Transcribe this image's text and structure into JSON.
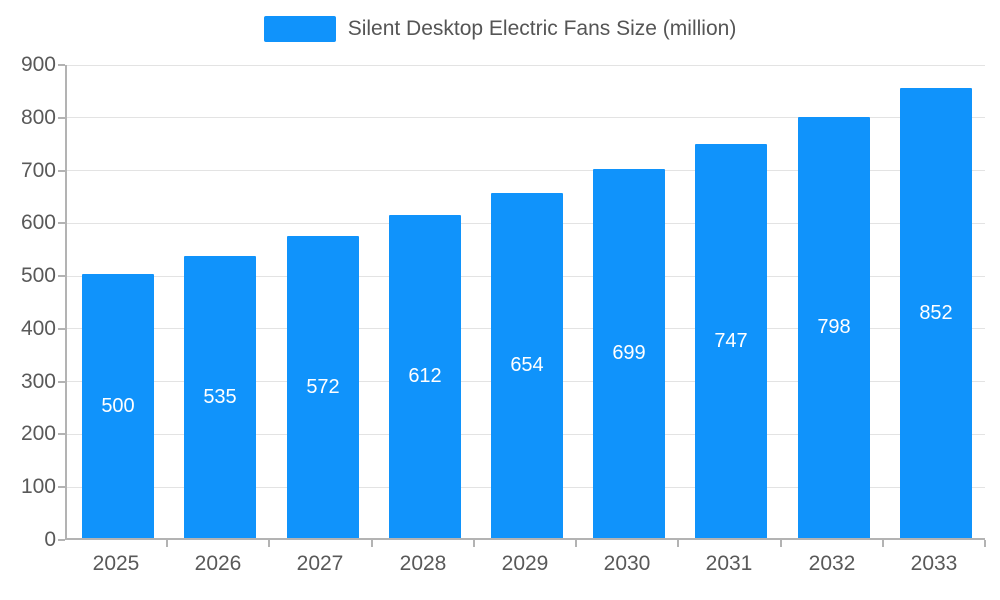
{
  "legend": {
    "label": "Silent Desktop Electric Fans Size (million)"
  },
  "colors": {
    "bar": "#1093FB",
    "legend_text": "#555555",
    "axis_text": "#595959",
    "grid": "#e3e3e3",
    "axis_line": "#b3b3b3",
    "value_label": "#ffffff"
  },
  "chart_data": {
    "type": "bar",
    "title": "Silent Desktop Electric Fans Size (million)",
    "categories": [
      "2025",
      "2026",
      "2027",
      "2028",
      "2029",
      "2030",
      "2031",
      "2032",
      "2033"
    ],
    "values": [
      500,
      535,
      572,
      612,
      654,
      699,
      747,
      798,
      852
    ],
    "xlabel": "",
    "ylabel": "",
    "ylim": [
      0,
      900
    ],
    "yticks": [
      0,
      100,
      200,
      300,
      400,
      500,
      600,
      700,
      800,
      900
    ],
    "grid": true,
    "legend_position": "top",
    "value_labels": "inside-center"
  }
}
